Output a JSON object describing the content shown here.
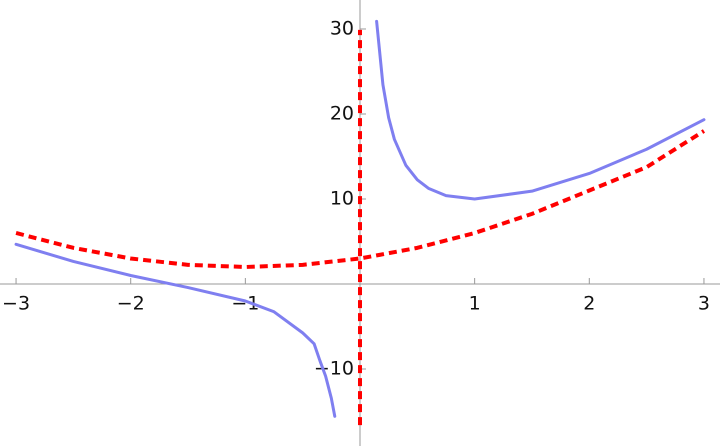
{
  "chart_data": {
    "type": "line",
    "xlim": [
      -3.14,
      3.14
    ],
    "ylim": [
      -19.06,
      33.41
    ],
    "xticks": [
      {
        "value": -3,
        "label": "−3"
      },
      {
        "value": -2,
        "label": "−2"
      },
      {
        "value": -1,
        "label": "−1"
      },
      1,
      2,
      3
    ],
    "yticks": [
      {
        "value": -10,
        "label": "−10"
      },
      10,
      20,
      30
    ],
    "series": [
      {
        "color": "#7f7ff0",
        "dashed": false,
        "x": [
          -3,
          -2.5,
          -2,
          -1.5,
          -1,
          -0.75,
          -0.5,
          -0.4,
          -0.35,
          -0.3,
          -0.25,
          -0.22,
          null,
          0.145,
          0.2,
          0.25,
          0.3,
          0.4,
          0.5,
          0.6,
          0.75,
          1,
          1.5,
          2,
          2.5,
          3
        ],
        "values": [
          4.67,
          2.65,
          1,
          -0.42,
          -2,
          -3.27,
          -5.75,
          -7.04,
          -9.01,
          -10.84,
          -13.44,
          -15.57,
          null,
          30.9,
          23.44,
          19.56,
          17.02,
          13.96,
          12.25,
          11.23,
          10.4,
          10,
          10.92,
          13,
          15.85,
          19.33
        ]
      },
      {
        "color": "#ff0000",
        "dashed": true,
        "x": [
          -3,
          -2.5,
          -2,
          -1.5,
          -1,
          -0.5,
          0,
          0.5,
          1,
          1.5,
          2,
          2.5,
          3
        ],
        "values": [
          6,
          4.25,
          3,
          2.25,
          2,
          2.25,
          3,
          4.25,
          6,
          8.25,
          11,
          13.75,
          18
        ]
      },
      {
        "color": "#ff0000",
        "dashed": true,
        "x": [
          0,
          0
        ],
        "values": [
          -16.6,
          29.9
        ]
      }
    ]
  }
}
